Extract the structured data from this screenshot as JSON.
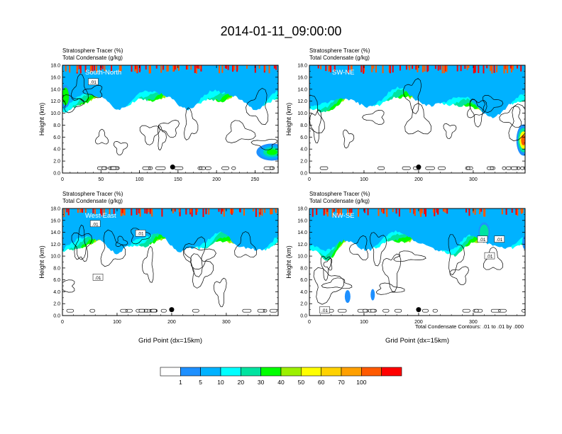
{
  "title": "2014-01-11_09:00:00",
  "y_ticks": [
    "0.0",
    "2.0",
    "4.0",
    "6.0",
    "8.0",
    "10.0",
    "12.0",
    "14.0",
    "16.0",
    "18.0"
  ],
  "colorbar": {
    "labels": [
      "1",
      "5",
      "10",
      "20",
      "30",
      "40",
      "50",
      "60",
      "70",
      "100"
    ],
    "colors": [
      "#ffffff",
      "#1e90ff",
      "#00b2ff",
      "#00ffff",
      "#00e3a0",
      "#00ff00",
      "#9cf000",
      "#ffff00",
      "#ffd200",
      "#ffa000",
      "#ff5a00",
      "#ff0000"
    ]
  },
  "contour_note": "Total Condensate Contours: .01 to .01 by .000",
  "chart_data": [
    {
      "type": "heatmap",
      "label1": "Stratosphere Tracer   (%)",
      "label2": "Total Condensate   (g/kg)",
      "panel_name": "South-North",
      "ylabel": "Height (km)",
      "xlabel": "",
      "ylim": [
        0,
        18
      ],
      "xlim": [
        0,
        280
      ],
      "x_ticks": [
        0,
        50,
        100,
        150,
        200,
        250
      ],
      "marker_x": 143,
      "contour_labels": [
        {
          "text": ".01",
          "x": 40,
          "y": 15.2
        }
      ]
    },
    {
      "type": "heatmap",
      "label1": "Stratosphere Tracer   (%)",
      "label2": "Total Condensate   (g/kg)",
      "panel_name": "SW-NE",
      "ylabel": "Height (km)",
      "xlabel": "",
      "ylim": [
        0,
        18
      ],
      "xlim": [
        0,
        395
      ],
      "x_ticks": [
        0,
        100,
        200,
        300
      ],
      "marker_x": 200,
      "contour_labels": []
    },
    {
      "type": "heatmap",
      "label1": "Stratosphere Tracer   (%)",
      "label2": "Total Condensate   (g/kg)",
      "panel_name": "West-East",
      "ylabel": "Height (km)",
      "xlabel": "Grid Point (dx=15km)",
      "ylim": [
        0,
        18
      ],
      "xlim": [
        0,
        395
      ],
      "x_ticks": [
        0,
        100,
        200,
        300
      ],
      "marker_x": 200,
      "contour_labels": [
        {
          "text": ".01",
          "x": 60,
          "y": 15.4
        },
        {
          "text": ".01",
          "x": 143,
          "y": 13.8
        },
        {
          "text": ".01",
          "x": 65,
          "y": 6.4
        }
      ]
    },
    {
      "type": "heatmap",
      "label1": "Stratosphere Tracer   (%)",
      "label2": "Total Condensate   (g/kg)",
      "panel_name": "NW-SE",
      "ylabel": "Height (km)",
      "xlabel": "Grid Point (dx=15km)",
      "ylim": [
        0,
        18
      ],
      "xlim": [
        0,
        395
      ],
      "x_ticks": [
        0,
        100,
        200,
        300
      ],
      "marker_x": 200,
      "contour_labels": [
        {
          "text": ".01",
          "x": 317,
          "y": 12.8
        },
        {
          "text": ".01",
          "x": 348,
          "y": 12.8
        },
        {
          "text": ".01",
          "x": 330,
          "y": 10.0
        },
        {
          "text": ".01",
          "x": 28,
          "y": 0.9
        }
      ]
    }
  ]
}
